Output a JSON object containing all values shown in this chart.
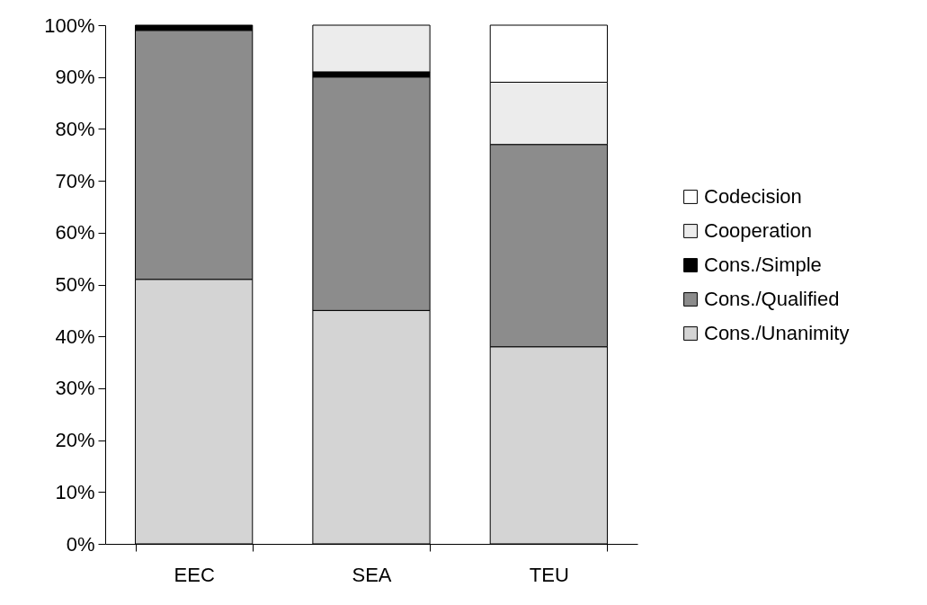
{
  "chart_data": {
    "type": "bar",
    "stacked": true,
    "categories": [
      "EEC",
      "SEA",
      "TEU"
    ],
    "series": [
      {
        "name": "Cons./Unanimity",
        "color": "#d4d4d4",
        "values": [
          51,
          45,
          38
        ]
      },
      {
        "name": "Cons./Qualified",
        "color": "#8c8c8c",
        "values": [
          48,
          45,
          39
        ]
      },
      {
        "name": "Cons./Simple",
        "color": "#000000",
        "values": [
          1,
          1,
          0
        ]
      },
      {
        "name": "Cooperation",
        "color": "#ececec",
        "values": [
          0,
          9,
          12
        ]
      },
      {
        "name": "Codecision",
        "color": "#ffffff",
        "values": [
          0,
          0,
          11
        ]
      }
    ],
    "ylim": [
      0,
      100
    ],
    "yticks": [
      {
        "value": 0,
        "label": "0%"
      },
      {
        "value": 10,
        "label": "10%"
      },
      {
        "value": 20,
        "label": "20%"
      },
      {
        "value": 30,
        "label": "30%"
      },
      {
        "value": 40,
        "label": "40%"
      },
      {
        "value": 50,
        "label": "50%"
      },
      {
        "value": 60,
        "label": "60%"
      },
      {
        "value": 70,
        "label": "70%"
      },
      {
        "value": 80,
        "label": "80%"
      },
      {
        "value": 90,
        "label": "90%"
      },
      {
        "value": 100,
        "label": "100%"
      }
    ],
    "grid": false,
    "legend": "right"
  }
}
